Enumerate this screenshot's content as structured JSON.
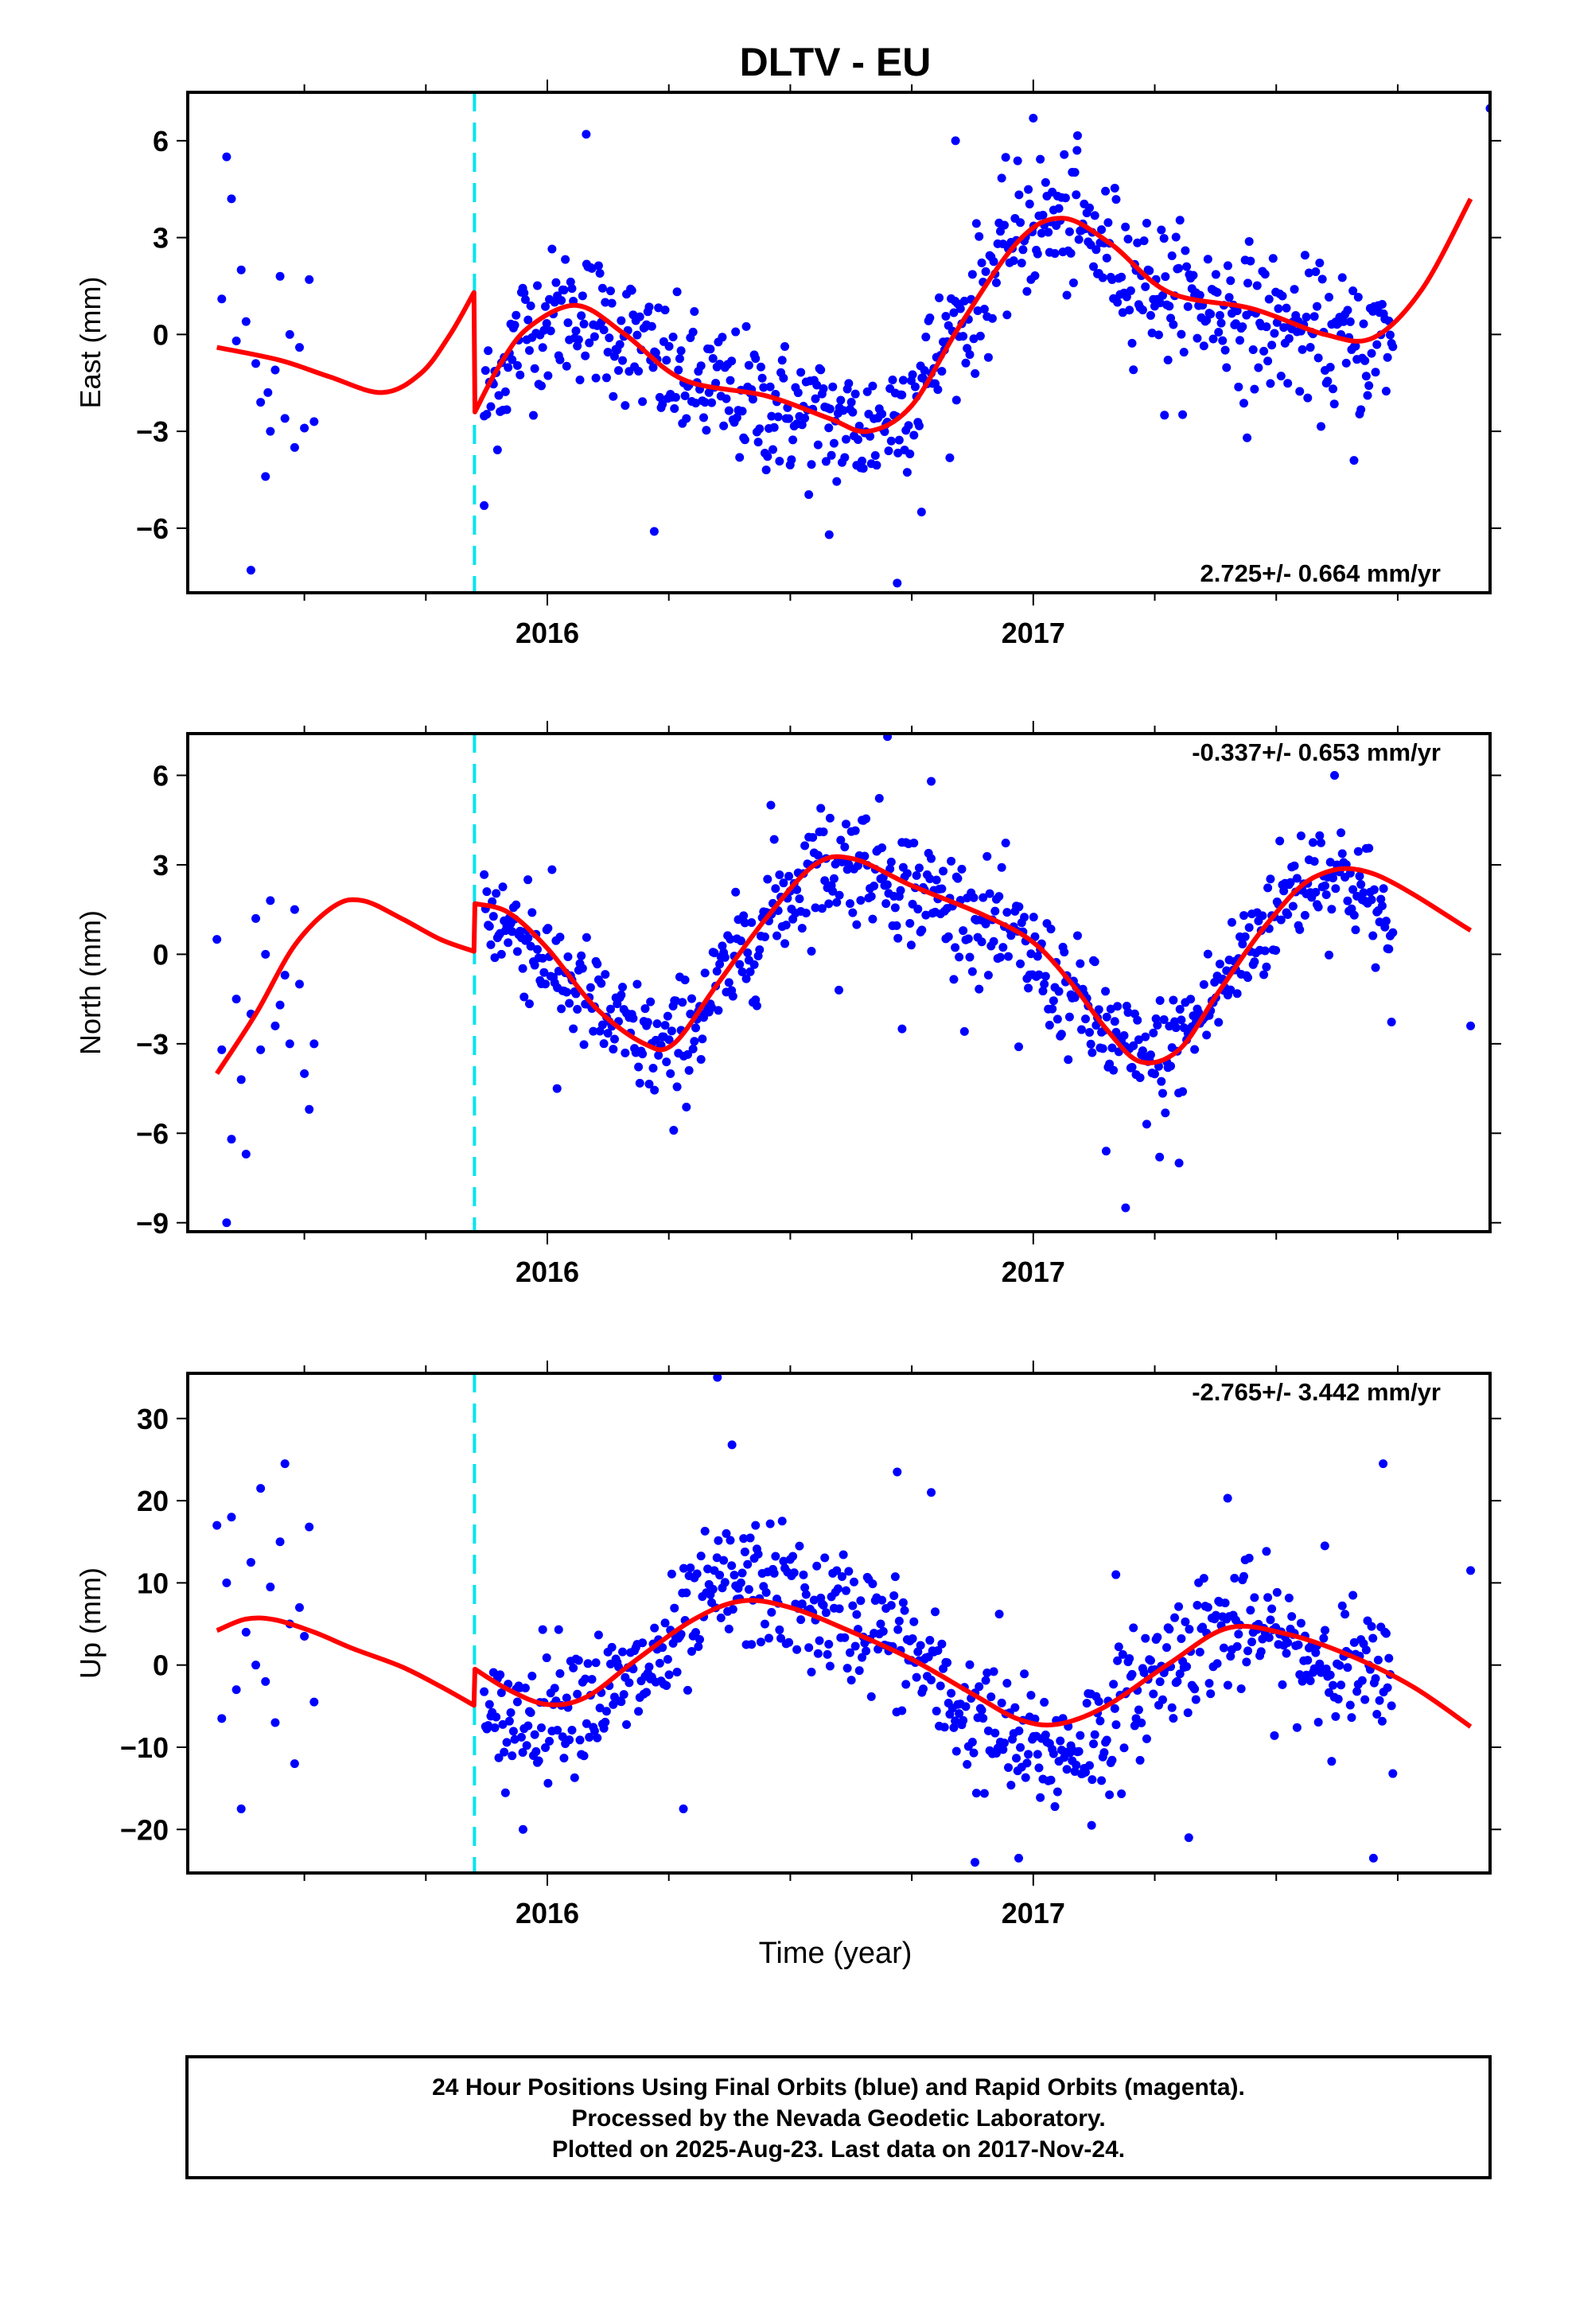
{
  "title": "DLTV - EU",
  "xlabel": "Time (year)",
  "footer": {
    "line1": "24 Hour Positions Using Final Orbits (blue) and Rapid Orbits (magenta).",
    "line2": "Processed by the Nevada Geodetic Laboratory.",
    "line3": "Plotted on 2025-Aug-23. Last data on 2017-Nov-24."
  },
  "colors": {
    "data": "#0000ff",
    "model": "#ff0000",
    "event": "#00e5ee",
    "axis": "#000000"
  },
  "chart_data": [
    {
      "type": "scatter",
      "ylabel": "East (mm)",
      "rate_label": "2.725+/- 0.664 mm/yr",
      "xlim": [
        2015.26,
        2017.94
      ],
      "ylim": [
        -8,
        7.5
      ],
      "yticks": [
        -6,
        -3,
        0,
        3,
        6
      ],
      "ytick_labels": [
        "−6",
        "−3",
        "0",
        "3",
        "6"
      ],
      "xticks": [
        2016,
        2017
      ],
      "xtick_labels": [
        "2016",
        "2017"
      ],
      "event_line_x": 2015.85,
      "data_gap": [
        2015.42,
        2015.86
      ],
      "model": {
        "x": [
          2015.32,
          2015.45,
          2015.55,
          2015.66,
          2015.74,
          2015.8,
          2015.849,
          2015.851,
          2015.9,
          2015.96,
          2016.06,
          2016.16,
          2016.28,
          2016.45,
          2016.58,
          2016.66,
          2016.75,
          2016.85,
          2016.97,
          2017.06,
          2017.16,
          2017.28,
          2017.45,
          2017.6,
          2017.7,
          2017.8,
          2017.9
        ],
        "y": [
          -0.4,
          -0.8,
          -1.3,
          -1.8,
          -1.2,
          0.0,
          1.3,
          -2.4,
          -1.0,
          0.2,
          0.9,
          0.0,
          -1.4,
          -1.9,
          -2.6,
          -3.0,
          -2.2,
          0.3,
          2.9,
          3.6,
          2.8,
          1.3,
          0.8,
          0.0,
          -0.1,
          1.4,
          4.2
        ]
      },
      "scatter": {
        "x": [
          2015.33,
          2015.34,
          2015.35,
          2015.36,
          2015.37,
          2015.38,
          2015.39,
          2015.4,
          2015.41,
          2015.42,
          2015.425,
          2015.43,
          2015.44,
          2015.45,
          2015.46,
          2015.47,
          2015.48,
          2015.49,
          2015.5,
          2015.51,
          2015.52
        ],
        "y": [
          1.1,
          5.5,
          4.2,
          -0.2,
          2.0,
          0.4,
          -7.3,
          -0.9,
          -2.1,
          -4.4,
          -1.8,
          -3.0,
          -1.1,
          1.8,
          -2.6,
          0.0,
          -3.5,
          -0.4,
          -2.9,
          1.7,
          -2.7
        ],
        "trend": {
          "x": [
            2015.87,
            2015.95,
            2016.05,
            2016.15,
            2016.25,
            2016.35,
            2016.45,
            2016.55,
            2016.65,
            2016.72,
            2016.8,
            2016.88,
            2016.95,
            2017.02,
            2017.1,
            2017.2,
            2017.3,
            2017.4,
            2017.5,
            2017.6,
            2017.68,
            2017.74
          ],
          "y": [
            -2.2,
            0.1,
            0.8,
            0.1,
            -1.2,
            -1.8,
            -2.2,
            -2.6,
            -3.0,
            -2.4,
            -0.8,
            1.0,
            2.8,
            3.6,
            3.2,
            2.0,
            1.1,
            0.8,
            0.3,
            -0.2,
            -0.4,
            0.0
          ]
        },
        "spread": 1.4,
        "outliers_x": [
          2015.87,
          2016.08,
          2016.22,
          2016.58,
          2016.72,
          2016.77,
          2016.84,
          2017.0,
          2017.09,
          2017.27,
          2017.44,
          2017.66,
          2017.94
        ],
        "outliers_y": [
          -5.3,
          6.2,
          -6.1,
          -6.2,
          -7.7,
          -5.5,
          6.0,
          6.7,
          5.7,
          -2.5,
          -3.2,
          -3.9,
          7.0
        ]
      }
    },
    {
      "type": "scatter",
      "ylabel": "North (mm)",
      "rate_label": "-0.337+/- 0.653 mm/yr",
      "xlim": [
        2015.26,
        2017.94
      ],
      "ylim": [
        -9.3,
        7.4
      ],
      "yticks": [
        -9,
        -6,
        -3,
        0,
        3,
        6
      ],
      "ytick_labels": [
        "−9",
        "−6",
        "−3",
        "0",
        "3",
        "6"
      ],
      "xticks": [
        2016,
        2017
      ],
      "xtick_labels": [
        "2016",
        "2017"
      ],
      "event_line_x": 2015.85,
      "data_gap": [
        2015.42,
        2015.86
      ],
      "model": {
        "x": [
          2015.32,
          2015.4,
          2015.48,
          2015.56,
          2015.62,
          2015.7,
          2015.78,
          2015.849,
          2015.851,
          2015.92,
          2016.0,
          2016.1,
          2016.2,
          2016.26,
          2016.35,
          2016.45,
          2016.55,
          2016.63,
          2016.75,
          2016.9,
          2017.0,
          2017.08,
          2017.15,
          2017.22,
          2017.3,
          2017.38,
          2017.48,
          2017.58,
          2017.7,
          2017.9
        ],
        "y": [
          -4.0,
          -2.0,
          0.3,
          1.6,
          1.8,
          1.2,
          0.5,
          0.1,
          1.7,
          1.4,
          0.2,
          -1.8,
          -3.0,
          -3.0,
          -1.0,
          1.2,
          3.0,
          3.2,
          2.3,
          1.3,
          0.4,
          -1.0,
          -2.5,
          -3.6,
          -3.2,
          -1.3,
          1.0,
          2.6,
          2.7,
          0.8
        ]
      },
      "scatter": {
        "x": [
          2015.32,
          2015.33,
          2015.34,
          2015.35,
          2015.36,
          2015.37,
          2015.38,
          2015.39,
          2015.4,
          2015.41,
          2015.42,
          2015.43,
          2015.44,
          2015.45,
          2015.46,
          2015.47,
          2015.48,
          2015.49,
          2015.5,
          2015.51,
          2015.52
        ],
        "y": [
          0.5,
          -3.2,
          -9.0,
          -6.2,
          -1.5,
          -4.2,
          -6.7,
          -2.0,
          1.2,
          -3.2,
          0.0,
          1.8,
          -2.4,
          -1.7,
          -0.7,
          -3.0,
          1.5,
          -1.0,
          -4.0,
          -5.2,
          -3.0
        ],
        "trend": {
          "x": [
            2015.87,
            2015.95,
            2016.05,
            2016.15,
            2016.25,
            2016.35,
            2016.45,
            2016.55,
            2016.65,
            2016.75,
            2016.85,
            2016.95,
            2017.05,
            2017.15,
            2017.22,
            2017.3,
            2017.4,
            2017.5,
            2017.58,
            2017.66,
            2017.74
          ],
          "y": [
            1.5,
            0.6,
            -1.0,
            -2.6,
            -3.3,
            -1.2,
            1.2,
            3.0,
            3.2,
            2.3,
            1.4,
            0.6,
            -1.0,
            -2.6,
            -3.8,
            -3.0,
            -0.8,
            1.6,
            2.9,
            2.5,
            0.5
          ]
        },
        "spread": 1.3,
        "outliers_x": [
          2015.96,
          2016.02,
          2016.26,
          2016.46,
          2016.6,
          2016.7,
          2016.73,
          2016.79,
          2016.97,
          2017.15,
          2017.19,
          2017.26,
          2017.3,
          2017.62,
          2017.9
        ],
        "outliers_y": [
          2.5,
          -4.5,
          -5.9,
          5.0,
          -1.2,
          7.3,
          -2.5,
          5.8,
          -3.1,
          -6.6,
          -8.5,
          -6.8,
          -7.0,
          6.0,
          -2.4
        ]
      }
    },
    {
      "type": "scatter",
      "ylabel": "Up (mm)",
      "rate_label": "-2.765+/- 3.442 mm/yr",
      "xlim": [
        2015.26,
        2017.94
      ],
      "ylim": [
        -25.3,
        35.5
      ],
      "yticks": [
        -20,
        -10,
        0,
        10,
        20,
        30
      ],
      "ytick_labels": [
        "−20",
        "−10",
        "0",
        "10",
        "20",
        "30"
      ],
      "xticks": [
        2016,
        2017
      ],
      "xtick_labels": [
        "2016",
        "2017"
      ],
      "event_line_x": 2015.85,
      "data_gap": [
        2015.42,
        2015.86
      ],
      "model": {
        "x": [
          2015.32,
          2015.38,
          2015.44,
          2015.52,
          2015.6,
          2015.7,
          2015.78,
          2015.849,
          2015.851,
          2015.92,
          2016.0,
          2016.08,
          2016.18,
          2016.3,
          2016.4,
          2016.5,
          2016.62,
          2016.75,
          2016.88,
          2016.97,
          2017.05,
          2017.15,
          2017.28,
          2017.4,
          2017.52,
          2017.65,
          2017.78,
          2017.9
        ],
        "y": [
          4.2,
          5.6,
          5.5,
          4.0,
          2.0,
          -0.2,
          -2.6,
          -4.9,
          -0.5,
          -3.0,
          -4.8,
          -3.9,
          0.5,
          5.5,
          7.8,
          7.0,
          4.2,
          0.7,
          -3.7,
          -6.6,
          -7.2,
          -5.0,
          0.2,
          4.5,
          3.8,
          1.2,
          -2.6,
          -7.5
        ]
      },
      "scatter": {
        "x": [
          2015.32,
          2015.33,
          2015.34,
          2015.35,
          2015.36,
          2015.37,
          2015.38,
          2015.39,
          2015.4,
          2015.41,
          2015.42,
          2015.43,
          2015.44,
          2015.45,
          2015.46,
          2015.47,
          2015.48,
          2015.49,
          2015.5,
          2015.51,
          2015.52
        ],
        "y": [
          17.0,
          -6.5,
          10.0,
          18.0,
          -3.0,
          -17.5,
          4.0,
          12.5,
          0.0,
          21.5,
          -2.0,
          9.5,
          -7.0,
          15.0,
          24.5,
          5.0,
          -12.0,
          7.0,
          3.5,
          16.8,
          -4.5
        ],
        "trend": {
          "x": [
            2015.87,
            2015.95,
            2016.05,
            2016.15,
            2016.25,
            2016.35,
            2016.45,
            2016.55,
            2016.65,
            2016.75,
            2016.85,
            2016.95,
            2017.05,
            2017.15,
            2017.25,
            2017.35,
            2017.45,
            2017.55,
            2017.65,
            2017.74
          ],
          "y": [
            -8.5,
            -6.0,
            -3.5,
            -3.5,
            1.5,
            9.0,
            10.0,
            6.5,
            5.5,
            1.5,
            -5.5,
            -9.5,
            -11.0,
            -7.5,
            -1.0,
            4.0,
            4.5,
            1.5,
            0.0,
            -3.0
          ]
        },
        "spread": 5.2,
        "outliers_x": [
          2015.95,
          2016.28,
          2016.35,
          2016.38,
          2016.72,
          2016.79,
          2016.88,
          2016.93,
          2016.97,
          2017.12,
          2017.17,
          2017.32,
          2017.4,
          2017.6,
          2017.7,
          2017.72,
          2017.9
        ],
        "outliers_y": [
          -20.0,
          -17.5,
          35.0,
          26.8,
          23.5,
          21.0,
          -24.0,
          6.2,
          -23.5,
          -19.5,
          11.0,
          -21.0,
          20.3,
          14.5,
          -23.5,
          24.5,
          11.5
        ]
      }
    }
  ]
}
